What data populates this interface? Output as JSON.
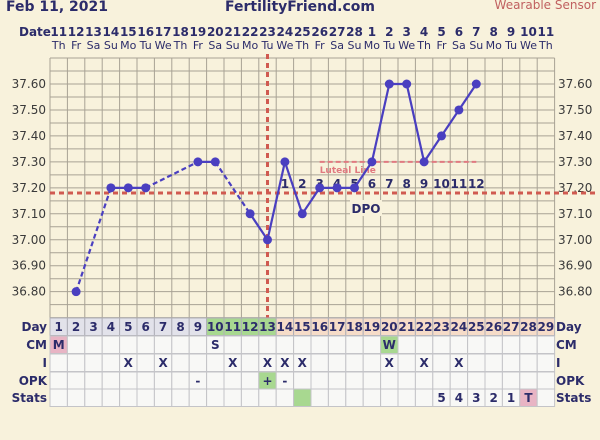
{
  "header": {
    "date": "Feb 11, 2021",
    "site": "FertilityFriend.com",
    "sensor": "Wearable Sensor"
  },
  "chart_data": {
    "type": "line",
    "row_labels": {
      "date": "Date",
      "day": "Day",
      "cm": "CM",
      "i": "I",
      "opk": "OPK",
      "stats": "Stats"
    },
    "dates": [
      "11",
      "12",
      "13",
      "14",
      "15",
      "16",
      "17",
      "18",
      "19",
      "20",
      "21",
      "22",
      "23",
      "24",
      "25",
      "26",
      "27",
      "28",
      "1",
      "2",
      "3",
      "4",
      "5",
      "6",
      "7",
      "8",
      "9",
      "10",
      "11"
    ],
    "weekdays": [
      "Th",
      "Fr",
      "Sa",
      "Su",
      "Mo",
      "Tu",
      "We",
      "Th",
      "Fr",
      "Sa",
      "Su",
      "Mo",
      "Tu",
      "We",
      "Th",
      "Fr",
      "Sa",
      "Su",
      "Mo",
      "Tu",
      "We",
      "Th",
      "Fr",
      "Sa",
      "Su",
      "Mo",
      "Tu",
      "We",
      "Th"
    ],
    "days": [
      1,
      2,
      3,
      4,
      5,
      6,
      7,
      8,
      9,
      10,
      11,
      12,
      13,
      14,
      15,
      16,
      17,
      18,
      19,
      20,
      21,
      22,
      23,
      24,
      25,
      26,
      27,
      28,
      29
    ],
    "temperatures": [
      null,
      36.8,
      null,
      37.2,
      37.2,
      37.2,
      null,
      null,
      37.3,
      37.3,
      null,
      37.1,
      37.0,
      37.3,
      37.1,
      37.2,
      37.2,
      37.2,
      37.3,
      37.6,
      37.6,
      37.3,
      37.4,
      37.5,
      37.6,
      null,
      null,
      null,
      null
    ],
    "y_ticks": [
      "37.60",
      "37.50",
      "37.40",
      "37.30",
      "37.20",
      "37.10",
      "37.00",
      "36.90",
      "36.80"
    ],
    "ylim": [
      36.7,
      37.7
    ],
    "grid": true,
    "coverline": 37.18,
    "ovulation_day": 13,
    "luteal_line": {
      "label": "Luteal Line",
      "value": 37.3,
      "from_day": 16,
      "to_day": 25
    },
    "dpo_label": "DPO",
    "dpo": [
      "1",
      "2",
      "3",
      "4",
      "5",
      "6",
      "7",
      "8",
      "9",
      "10",
      "11",
      "12"
    ],
    "fertile_days": [
      10,
      11,
      12,
      13
    ],
    "luteal_days_from": 14,
    "cm": {
      "1": "M",
      "10": "S",
      "20": "W"
    },
    "intercourse": {
      "5": "X",
      "7": "X",
      "11": "X",
      "13": "X",
      "14": "X",
      "15": "X",
      "20": "X",
      "22": "X",
      "24": "X"
    },
    "opk": {
      "9": "-",
      "13": "+",
      "14": "-"
    },
    "stats": {
      "23": "5",
      "24": "4",
      "25": "3",
      "26": "2",
      "27": "1",
      "28": "T"
    },
    "colors": {
      "line": "#4a3fc0",
      "coverline": "#d05a50",
      "fertile": "#a8d890",
      "luteal": "#f6dcc8",
      "preov": "#e2e2ea",
      "menses": "#e8b4c4",
      "grid": "#a8a294",
      "background": "#f8f2dc"
    }
  }
}
